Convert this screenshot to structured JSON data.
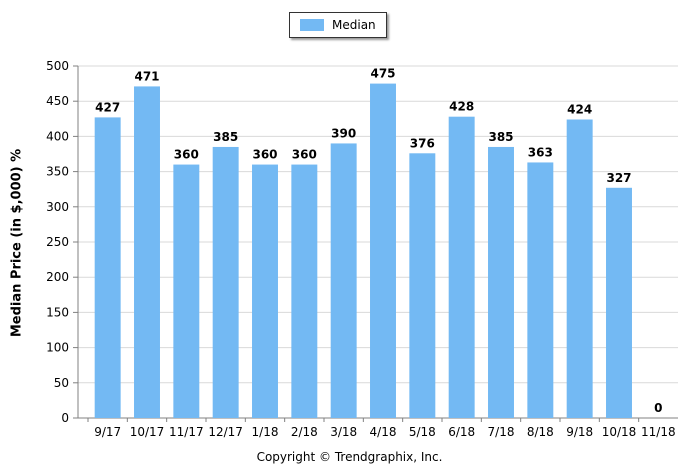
{
  "legend": {
    "label": "Median",
    "color": "#73b9f3"
  },
  "footer": {
    "copyright": "Copyright © Trendgraphix, Inc."
  },
  "chart_data": {
    "type": "bar",
    "categories": [
      "9/17",
      "10/17",
      "11/17",
      "12/17",
      "1/18",
      "2/18",
      "3/18",
      "4/18",
      "5/18",
      "6/18",
      "7/18",
      "8/18",
      "9/18",
      "10/18",
      "11/18"
    ],
    "series": [
      {
        "name": "Median",
        "values": [
          427,
          471,
          360,
          385,
          360,
          360,
          390,
          475,
          376,
          428,
          385,
          363,
          424,
          327,
          0
        ]
      }
    ],
    "ylabel": "Median Price (in $,000) %",
    "xlabel": "",
    "ylim": [
      0,
      500
    ],
    "yticks": [
      0,
      50,
      100,
      150,
      200,
      250,
      300,
      350,
      400,
      450,
      500
    ],
    "grid": true,
    "legend_position": "top-center",
    "bar_color": "#73b9f3"
  }
}
